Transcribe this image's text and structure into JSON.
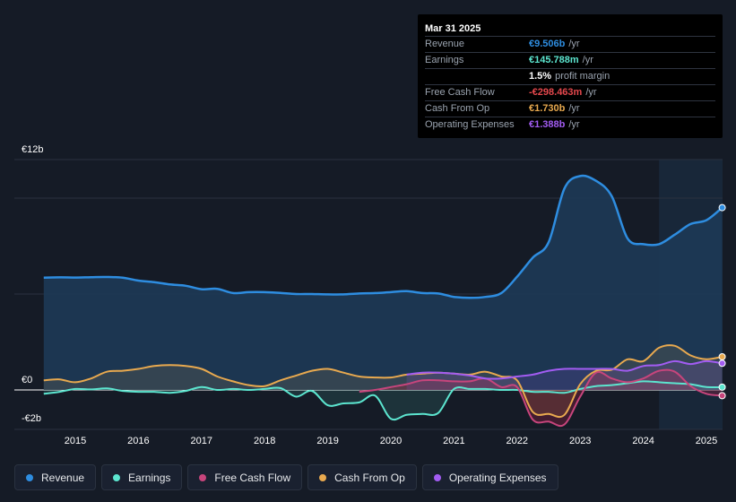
{
  "tooltip": {
    "date": "Mar 31 2025",
    "rows": [
      {
        "label": "Revenue",
        "value": "€9.506b",
        "unit": "/yr",
        "color": "#2e8de0"
      },
      {
        "label": "Earnings",
        "value": "€145.788m",
        "unit": "/yr",
        "color": "#5ce5cf"
      },
      {
        "label": "",
        "value": "1.5%",
        "unit": "profit margin",
        "color": "#ffffff"
      },
      {
        "label": "Free Cash Flow",
        "value": "-€298.463m",
        "unit": "/yr",
        "color": "#e5484d"
      },
      {
        "label": "Cash From Op",
        "value": "€1.730b",
        "unit": "/yr",
        "color": "#e8a94f"
      },
      {
        "label": "Operating Expenses",
        "value": "€1.388b",
        "unit": "/yr",
        "color": "#a25cf2"
      }
    ]
  },
  "legend": [
    {
      "label": "Revenue",
      "color": "#2e8de0"
    },
    {
      "label": "Earnings",
      "color": "#5ce5cf"
    },
    {
      "label": "Free Cash Flow",
      "color": "#c7457c"
    },
    {
      "label": "Cash From Op",
      "color": "#e8a94f"
    },
    {
      "label": "Operating Expenses",
      "color": "#a25cf2"
    }
  ],
  "chart_data": {
    "type": "area",
    "y_unit": "€b",
    "ylim": [
      -2,
      12
    ],
    "y_tick_labels": [
      {
        "value": 12,
        "label": "€12b"
      },
      {
        "value": 0,
        "label": "€0"
      },
      {
        "value": -2,
        "label": "-€2b"
      }
    ],
    "x_tick_labels": [
      "2015",
      "2016",
      "2017",
      "2018",
      "2019",
      "2020",
      "2021",
      "2022",
      "2023",
      "2024",
      "2025"
    ],
    "forecast_shade_from": 2024.25,
    "series": [
      {
        "name": "Revenue",
        "color": "#2e8de0",
        "x": [
          2014.5,
          2014.75,
          2015.0,
          2015.25,
          2015.5,
          2015.75,
          2016.0,
          2016.25,
          2016.5,
          2016.75,
          2017.0,
          2017.25,
          2017.5,
          2017.75,
          2018.0,
          2018.25,
          2018.5,
          2018.75,
          2019.0,
          2019.25,
          2019.5,
          2019.75,
          2020.0,
          2020.25,
          2020.5,
          2020.75,
          2021.0,
          2021.25,
          2021.5,
          2021.75,
          2022.0,
          2022.25,
          2022.5,
          2022.75,
          2023.0,
          2023.25,
          2023.5,
          2023.75,
          2024.0,
          2024.25,
          2024.5,
          2024.75,
          2025.0,
          2025.25
        ],
        "y": [
          5.85,
          5.87,
          5.86,
          5.88,
          5.89,
          5.85,
          5.7,
          5.62,
          5.5,
          5.43,
          5.25,
          5.27,
          5.05,
          5.1,
          5.1,
          5.06,
          5.0,
          5.0,
          4.98,
          4.98,
          5.03,
          5.05,
          5.1,
          5.15,
          5.05,
          5.03,
          4.85,
          4.8,
          4.85,
          5.05,
          5.9,
          6.9,
          7.7,
          10.5,
          11.15,
          10.9,
          10.1,
          7.9,
          7.6,
          7.6,
          8.1,
          8.65,
          8.85,
          9.506
        ]
      },
      {
        "name": "Earnings",
        "color": "#5ce5cf",
        "x": [
          2014.5,
          2014.75,
          2015.0,
          2015.25,
          2015.5,
          2015.75,
          2016.0,
          2016.25,
          2016.5,
          2016.75,
          2017.0,
          2017.25,
          2017.5,
          2017.75,
          2018.0,
          2018.25,
          2018.5,
          2018.75,
          2019.0,
          2019.25,
          2019.5,
          2019.75,
          2020.0,
          2020.25,
          2020.5,
          2020.75,
          2021.0,
          2021.25,
          2021.5,
          2021.75,
          2022.0,
          2022.25,
          2022.5,
          2022.75,
          2023.0,
          2023.25,
          2023.5,
          2023.75,
          2024.0,
          2024.25,
          2024.5,
          2024.75,
          2025.0,
          2025.25
        ],
        "y": [
          -0.2,
          -0.1,
          0.05,
          0.03,
          0.08,
          -0.05,
          -0.1,
          -0.1,
          -0.15,
          -0.05,
          0.15,
          0.0,
          0.05,
          0.0,
          0.05,
          0.1,
          -0.35,
          -0.05,
          -0.8,
          -0.7,
          -0.65,
          -0.3,
          -1.5,
          -1.3,
          -1.25,
          -1.2,
          0.05,
          0.05,
          0.05,
          0.0,
          0.0,
          -0.1,
          -0.1,
          -0.15,
          0.05,
          0.2,
          0.25,
          0.35,
          0.45,
          0.4,
          0.35,
          0.3,
          0.15,
          0.146
        ]
      },
      {
        "name": "Free Cash Flow",
        "color": "#c7457c",
        "x": [
          2019.5,
          2019.75,
          2020.0,
          2020.25,
          2020.5,
          2020.75,
          2021.0,
          2021.25,
          2021.5,
          2021.75,
          2022.0,
          2022.25,
          2022.5,
          2022.75,
          2023.0,
          2023.25,
          2023.5,
          2023.75,
          2024.0,
          2024.25,
          2024.5,
          2024.75,
          2025.0,
          2025.25
        ],
        "y": [
          -0.1,
          0.0,
          0.15,
          0.3,
          0.5,
          0.5,
          0.45,
          0.45,
          0.6,
          0.15,
          0.15,
          -1.55,
          -1.65,
          -1.8,
          -0.35,
          0.9,
          0.6,
          0.4,
          0.6,
          1.0,
          0.95,
          0.2,
          -0.2,
          -0.298
        ]
      },
      {
        "name": "Cash From Op",
        "color": "#e8a94f",
        "x": [
          2014.5,
          2014.75,
          2015.0,
          2015.25,
          2015.5,
          2015.75,
          2016.0,
          2016.25,
          2016.5,
          2016.75,
          2017.0,
          2017.25,
          2017.5,
          2017.75,
          2018.0,
          2018.25,
          2018.5,
          2018.75,
          2019.0,
          2019.25,
          2019.5,
          2019.75,
          2020.0,
          2020.25,
          2020.5,
          2020.75,
          2021.0,
          2021.25,
          2021.5,
          2021.75,
          2022.0,
          2022.25,
          2022.5,
          2022.75,
          2023.0,
          2023.25,
          2023.5,
          2023.75,
          2024.0,
          2024.25,
          2024.5,
          2024.75,
          2025.0,
          2025.25
        ],
        "y": [
          0.5,
          0.55,
          0.4,
          0.6,
          0.95,
          1.0,
          1.1,
          1.25,
          1.3,
          1.25,
          1.1,
          0.7,
          0.45,
          0.25,
          0.2,
          0.5,
          0.75,
          1.0,
          1.1,
          0.9,
          0.7,
          0.65,
          0.65,
          0.8,
          0.85,
          0.9,
          0.85,
          0.8,
          0.95,
          0.7,
          0.5,
          -1.15,
          -1.25,
          -1.3,
          0.3,
          1.0,
          1.05,
          1.6,
          1.5,
          2.2,
          2.3,
          1.8,
          1.6,
          1.73
        ]
      },
      {
        "name": "Operating Expenses",
        "color": "#a25cf2",
        "x": [
          2020.25,
          2020.5,
          2020.75,
          2021.0,
          2021.25,
          2021.5,
          2021.75,
          2022.0,
          2022.25,
          2022.5,
          2022.75,
          2023.0,
          2023.25,
          2023.5,
          2023.75,
          2024.0,
          2024.25,
          2024.5,
          2024.75,
          2025.0,
          2025.25
        ],
        "y": [
          0.8,
          0.9,
          0.9,
          0.85,
          0.75,
          0.6,
          0.6,
          0.7,
          0.8,
          1.0,
          1.1,
          1.1,
          1.1,
          1.1,
          1.0,
          1.25,
          1.3,
          1.5,
          1.35,
          1.5,
          1.388
        ]
      }
    ]
  }
}
